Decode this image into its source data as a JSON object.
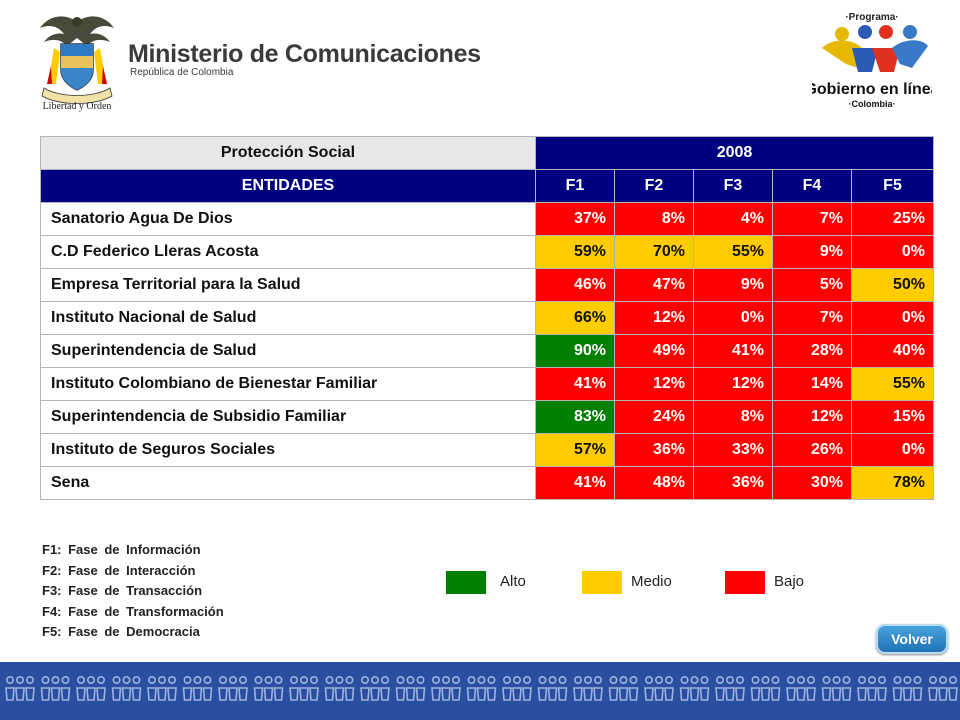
{
  "header": {
    "crest_motto": "Libertad y Orden",
    "ministry_name": "Ministerio de Comunicaciones",
    "ministry_country": "República de Colombia",
    "program_top": "·Programa·",
    "program_name_1": "Gobierno en línea",
    "program_bottom": "·Colombia·"
  },
  "table": {
    "category": "Protección Social",
    "year": "2008",
    "col_headers": [
      "ENTIDADES",
      "F1",
      "F2",
      "F3",
      "F4",
      "F5"
    ],
    "rows": [
      {
        "entity": "Sanatorio Agua De Dios",
        "values": [
          "37%",
          "8%",
          "4%",
          "7%",
          "25%"
        ],
        "levels": [
          "bajo",
          "bajo",
          "bajo",
          "bajo",
          "bajo"
        ]
      },
      {
        "entity": "C.D Federico Lleras Acosta",
        "values": [
          "59%",
          "70%",
          "55%",
          "9%",
          "0%"
        ],
        "levels": [
          "medio",
          "medio",
          "medio",
          "bajo",
          "bajo"
        ]
      },
      {
        "entity": "Empresa Territorial para la Salud",
        "values": [
          "46%",
          "47%",
          "9%",
          "5%",
          "50%"
        ],
        "levels": [
          "bajo",
          "bajo",
          "bajo",
          "bajo",
          "medio"
        ]
      },
      {
        "entity": "Instituto Nacional de Salud",
        "values": [
          "66%",
          "12%",
          "0%",
          "7%",
          "0%"
        ],
        "levels": [
          "medio",
          "bajo",
          "bajo",
          "bajo",
          "bajo"
        ]
      },
      {
        "entity": "Superintendencia de Salud",
        "values": [
          "90%",
          "49%",
          "41%",
          "28%",
          "40%"
        ],
        "levels": [
          "alto",
          "bajo",
          "bajo",
          "bajo",
          "bajo"
        ]
      },
      {
        "entity": "Instituto Colombiano de Bienestar Familiar",
        "values": [
          "41%",
          "12%",
          "12%",
          "14%",
          "55%"
        ],
        "levels": [
          "bajo",
          "bajo",
          "bajo",
          "bajo",
          "medio"
        ]
      },
      {
        "entity": "Superintendencia de Subsidio Familiar",
        "values": [
          "83%",
          "24%",
          "8%",
          "12%",
          "15%"
        ],
        "levels": [
          "alto",
          "bajo",
          "bajo",
          "bajo",
          "bajo"
        ]
      },
      {
        "entity": "Instituto de Seguros Sociales",
        "values": [
          "57%",
          "36%",
          "33%",
          "26%",
          "0%"
        ],
        "levels": [
          "medio",
          "bajo",
          "bajo",
          "bajo",
          "bajo"
        ]
      },
      {
        "entity": "Sena",
        "values": [
          "41%",
          "48%",
          "36%",
          "30%",
          "78%"
        ],
        "levels": [
          "bajo",
          "bajo",
          "bajo",
          "bajo",
          "medio"
        ]
      }
    ]
  },
  "phase_legend": [
    "F1: Fase de Información",
    "F2: Fase de Interacción",
    "F3: Fase de Transacción",
    "F4: Fase de Transformación",
    "F5: Fase de Democracia"
  ],
  "color_legend": {
    "alto": {
      "label": "Alto",
      "color": "#008000"
    },
    "medio": {
      "label": "Medio",
      "color": "#ffcc00"
    },
    "bajo": {
      "label": "Bajo",
      "color": "#ff0000"
    }
  },
  "nav": {
    "volver_label": "Volver"
  },
  "footer": {
    "band_color": "#2b4fa0",
    "pattern_icon": "people-group-icon"
  }
}
